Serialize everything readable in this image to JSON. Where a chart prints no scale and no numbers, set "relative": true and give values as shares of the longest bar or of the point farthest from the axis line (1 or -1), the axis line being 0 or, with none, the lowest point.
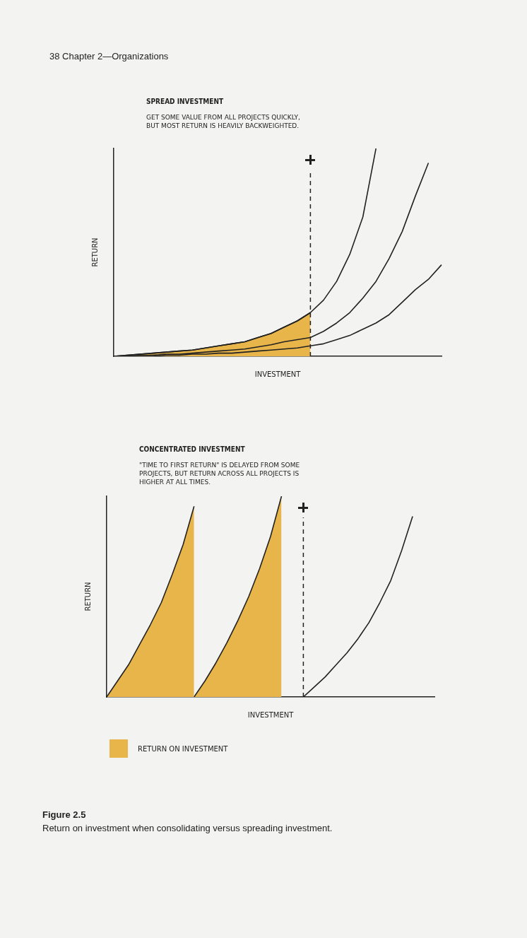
{
  "chart_data": [
    {
      "type": "line",
      "title": "SPREAD INVESTMENT",
      "subtitle": "GET SOME VALUE FROM ALL PROJECTS QUICKLY, BUT MOST RETURN IS HEAVILY BACKWEIGHTED.",
      "xlabel": "INVESTMENT",
      "ylabel": "RETURN",
      "relative": true,
      "grid": false,
      "legend": false,
      "tick_labels": false,
      "marker": "none",
      "line_style": "solid",
      "annotations": [
        "38 Chapter 2—Organizations"
      ],
      "categories": [
        null,
        null,
        null,
        null,
        null,
        null,
        null,
        null,
        null,
        null,
        null,
        null,
        null,
        null,
        null,
        null,
        null,
        null,
        null,
        null,
        null,
        null,
        null,
        null,
        null,
        null
      ],
      "series": [
        {
          "type": "area",
          "color": "#e8b54a",
          "values": [
            0,
            0.005,
            0.01,
            0.015,
            0.02,
            0.025,
            0.03,
            0.04,
            0.05,
            0.06,
            0.07,
            0.09,
            0.11,
            0.14,
            0.17,
            0.21,
            null,
            null,
            null,
            null,
            null,
            null,
            null,
            null,
            null,
            null
          ]
        },
        {
          "color": "#222222",
          "values": [
            0,
            0.005,
            0.01,
            0.015,
            0.02,
            0.025,
            0.03,
            0.04,
            0.05,
            0.06,
            0.07,
            0.09,
            0.11,
            0.14,
            0.17,
            0.21,
            0.27,
            0.36,
            0.49,
            0.67,
            1.0,
            null,
            null,
            null,
            null,
            null
          ]
        },
        {
          "color": "#222222",
          "values": [
            0,
            0,
            0.005,
            0.005,
            0.01,
            0.01,
            0.015,
            0.02,
            0.025,
            0.03,
            0.035,
            0.045,
            0.055,
            0.07,
            0.08,
            0.09,
            0.12,
            0.16,
            0.21,
            0.28,
            0.36,
            0.47,
            0.6,
            0.77,
            0.93,
            null
          ]
        },
        {
          "color": "#222222",
          "values": [
            0,
            0,
            0,
            0,
            0.005,
            0.005,
            0.01,
            0.01,
            0.015,
            0.015,
            0.02,
            0.025,
            0.03,
            0.035,
            0.04,
            0.05,
            0.06,
            0.08,
            0.1,
            0.13,
            0.16,
            0.2,
            0.26,
            0.32,
            0.37,
            0.44
          ]
        }
      ]
    },
    {
      "type": "line",
      "title": "CONCENTRATED INVESTMENT",
      "subtitle": "\"TIME TO FIRST RETURN\" IS DELAYED FROM SOME PROJECTS, BUT RETURN ACROSS ALL PROJECTS IS HIGHER AT ALL TIMES.",
      "xlabel": "INVESTMENT",
      "ylabel": "RETURN",
      "relative": true,
      "grid": false,
      "legend": "bottom left",
      "tick_labels": false,
      "marker": "none",
      "line_style": "solid",
      "annotations": [
        "Figure 2.5",
        "Return on investment when consolidating versus spreading investment."
      ],
      "categories": [
        null,
        null,
        null,
        null,
        null,
        null,
        null,
        null,
        null,
        null,
        null,
        null,
        null,
        null,
        null,
        null,
        null,
        null,
        null,
        null,
        null,
        null,
        null,
        null,
        null,
        null,
        null,
        null,
        null,
        null,
        null
      ],
      "series": [
        {
          "type": "area",
          "name": "RETURN ON INVESTMENT",
          "color": "#e8b54a",
          "values": [
            0,
            0.08,
            0.16,
            0.26,
            0.36,
            0.47,
            0.61,
            0.76,
            0.95,
            null,
            null,
            null,
            null,
            null,
            null,
            null,
            null,
            null,
            null,
            null,
            null,
            null,
            null,
            null,
            null,
            null,
            null,
            null,
            null,
            null,
            null
          ]
        },
        {
          "type": "area",
          "color": "#e8b54a",
          "values": [
            null,
            null,
            null,
            null,
            null,
            null,
            null,
            null,
            0,
            0.08,
            0.17,
            0.27,
            0.38,
            0.5,
            0.64,
            0.8,
            1.0,
            null,
            null,
            null,
            null,
            null,
            null,
            null,
            null,
            null,
            null,
            null,
            null,
            null,
            null
          ]
        },
        {
          "color": "#222222",
          "values": [
            null,
            null,
            null,
            null,
            null,
            null,
            null,
            null,
            null,
            null,
            null,
            null,
            null,
            null,
            null,
            null,
            null,
            null,
            0,
            0.05,
            0.1,
            0.16,
            0.22,
            0.29,
            0.37,
            0.47,
            0.58,
            0.73,
            0.9,
            null,
            null
          ]
        }
      ]
    }
  ]
}
